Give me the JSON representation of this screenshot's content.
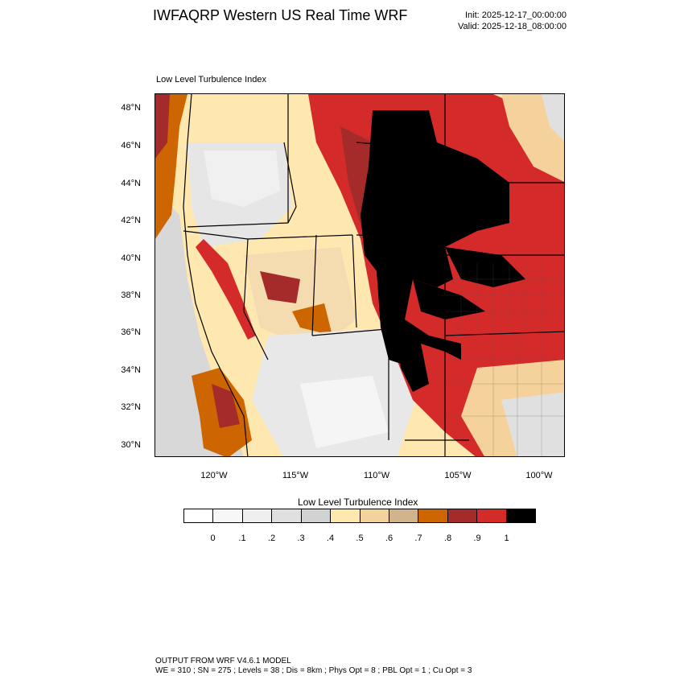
{
  "header": {
    "title": "IWFAQRP Western US Real Time WRF",
    "init": "Init: 2025-12-17_00:00:00",
    "valid": "Valid: 2025-12-18_08:00:00"
  },
  "map": {
    "field_label": "Low Level Turbulence Index",
    "lat_ticks": [
      "48°N",
      "46°N",
      "44°N",
      "42°N",
      "40°N",
      "38°N",
      "36°N",
      "34°N",
      "32°N",
      "30°N"
    ],
    "lon_ticks": [
      "120°W",
      "115°W",
      "110°W",
      "105°W",
      "100°W"
    ]
  },
  "colorbar": {
    "title": "Low Level Turbulence Index",
    "colors": [
      "#ffffff",
      "#f7f7f7",
      "#efefef",
      "#e0e0e0",
      "#d2d2d2",
      "#ffe8b0",
      "#f5d29b",
      "#d2b48c",
      "#cd6600",
      "#a52a2a",
      "#d42a2a",
      "#000000"
    ],
    "labels": [
      "0",
      ".1",
      ".2",
      ".3",
      ".4",
      ".5",
      ".6",
      ".7",
      ".8",
      ".9",
      "1"
    ]
  },
  "footer": {
    "line1": "OUTPUT FROM WRF V4.6.1 MODEL",
    "line2": "WE = 310 ; SN = 275 ; Levels = 38 ; Dis = 8km ; Phys Opt = 8 ; PBL Opt = 1 ; Cu Opt = 3"
  }
}
